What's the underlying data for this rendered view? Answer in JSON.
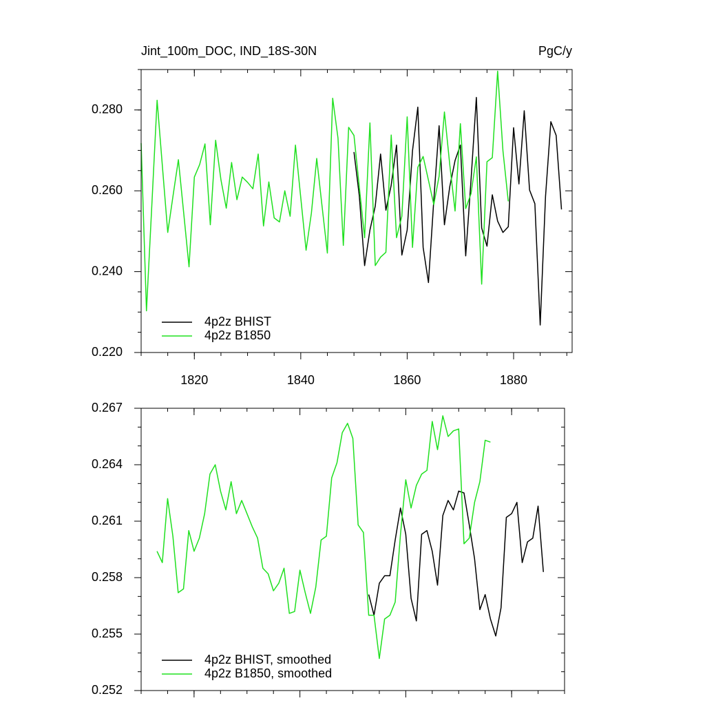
{
  "chart_data": [
    {
      "type": "line",
      "title": "Jint_100m_DOC, IND_18S-30N",
      "units": "PgC/y",
      "x": [
        1810,
        1811,
        1812,
        1813,
        1814,
        1815,
        1816,
        1817,
        1818,
        1819,
        1820,
        1821,
        1822,
        1823,
        1824,
        1825,
        1826,
        1827,
        1828,
        1829,
        1830,
        1831,
        1832,
        1833,
        1834,
        1835,
        1836,
        1837,
        1838,
        1839,
        1840,
        1841,
        1842,
        1843,
        1844,
        1845,
        1846,
        1847,
        1848,
        1849,
        1850,
        1851,
        1852,
        1853,
        1854,
        1855,
        1856,
        1857,
        1858,
        1859,
        1860,
        1861,
        1862,
        1863,
        1864,
        1865,
        1866,
        1867,
        1868,
        1869,
        1870,
        1871,
        1872,
        1873,
        1874,
        1875,
        1876,
        1877,
        1878,
        1879,
        1880,
        1881,
        1882,
        1883,
        1884,
        1885,
        1886,
        1887,
        1888,
        1889
      ],
      "series": [
        {
          "name": "4p2z BHIST",
          "color": "#000000",
          "values": [
            null,
            null,
            null,
            null,
            null,
            null,
            null,
            null,
            null,
            null,
            null,
            null,
            null,
            null,
            null,
            null,
            null,
            null,
            null,
            null,
            null,
            null,
            null,
            null,
            null,
            null,
            null,
            null,
            null,
            null,
            null,
            null,
            null,
            null,
            null,
            null,
            null,
            null,
            null,
            null,
            0.2696,
            0.2588,
            0.2415,
            0.2503,
            0.2562,
            0.2691,
            0.2552,
            0.2614,
            0.2713,
            0.2441,
            0.2503,
            0.2699,
            0.2807,
            0.246,
            0.2373,
            0.2576,
            0.2761,
            0.2516,
            0.261,
            0.2675,
            0.2713,
            0.2439,
            0.2627,
            0.2831,
            0.2508,
            0.2463,
            0.259,
            0.2525,
            0.2497,
            0.2511,
            0.2756,
            0.2617,
            0.2798,
            0.2602,
            0.2568,
            0.2268,
            0.2586,
            0.2771,
            0.2737,
            0.2554
          ]
        },
        {
          "name": "4p2z B1850",
          "color": "#1fe01f",
          "values": [
            0.2718,
            0.2303,
            0.2562,
            0.2824,
            0.266,
            0.2497,
            0.2588,
            0.2677,
            0.2545,
            0.2412,
            0.2634,
            0.2665,
            0.2716,
            0.2516,
            0.2725,
            0.2627,
            0.2557,
            0.267,
            0.2578,
            0.2634,
            0.2621,
            0.2605,
            0.2691,
            0.2513,
            0.2622,
            0.2533,
            0.2523,
            0.26,
            0.2537,
            0.2713,
            0.2583,
            0.2453,
            0.2545,
            0.268,
            0.2562,
            0.2446,
            0.2829,
            0.273,
            0.2465,
            0.2757,
            0.2737,
            0.261,
            0.2484,
            0.2768,
            0.2415,
            0.2436,
            0.2448,
            0.2738,
            0.2484,
            0.2537,
            0.2783,
            0.246,
            0.2658,
            0.2685,
            0.2626,
            0.2566,
            0.2636,
            0.2795,
            0.2665,
            0.255,
            0.2766,
            0.2556,
            0.2593,
            0.2684,
            0.2369,
            0.2672,
            0.2682,
            0.2896,
            0.2699,
            0.2574,
            null,
            null,
            null,
            null,
            null,
            null,
            null,
            null,
            null,
            null
          ]
        }
      ],
      "xlim": [
        1810,
        1891
      ],
      "xticks": [
        1820,
        1840,
        1860,
        1880
      ],
      "ylim": [
        0.22,
        0.29
      ],
      "yticks": [
        {
          "value": 0.22,
          "label": "0.220"
        },
        {
          "value": 0.24,
          "label": "0.240"
        },
        {
          "value": 0.26,
          "label": "0.260"
        },
        {
          "value": 0.28,
          "label": "0.280"
        }
      ],
      "legend": "lower left"
    },
    {
      "type": "line",
      "x": [
        1813,
        1814,
        1815,
        1816,
        1817,
        1818,
        1819,
        1820,
        1821,
        1822,
        1823,
        1824,
        1825,
        1826,
        1827,
        1828,
        1829,
        1830,
        1831,
        1832,
        1833,
        1834,
        1835,
        1836,
        1837,
        1838,
        1839,
        1840,
        1841,
        1842,
        1843,
        1844,
        1845,
        1846,
        1847,
        1848,
        1849,
        1850,
        1851,
        1852,
        1853,
        1854,
        1855,
        1856,
        1857,
        1858,
        1859,
        1860,
        1861,
        1862,
        1863,
        1864,
        1865,
        1866,
        1867,
        1868,
        1869,
        1870,
        1871,
        1872,
        1873,
        1874,
        1875,
        1876,
        1877,
        1878,
        1879,
        1880,
        1881,
        1882,
        1883,
        1884,
        1885,
        1886
      ],
      "series": [
        {
          "name": "4p2z BHIST, smoothed",
          "color": "#000000",
          "values": [
            null,
            null,
            null,
            null,
            null,
            null,
            null,
            null,
            null,
            null,
            null,
            null,
            null,
            null,
            null,
            null,
            null,
            null,
            null,
            null,
            null,
            null,
            null,
            null,
            null,
            null,
            null,
            null,
            null,
            null,
            null,
            null,
            null,
            null,
            null,
            null,
            null,
            null,
            null,
            null,
            0.2571,
            0.256,
            0.2577,
            0.2581,
            0.2581,
            0.26,
            0.2617,
            0.2603,
            0.2569,
            0.2557,
            0.2603,
            0.2605,
            0.2594,
            0.2576,
            0.2613,
            0.2621,
            0.2616,
            0.2626,
            0.2625,
            0.2608,
            0.259,
            0.2563,
            0.2571,
            0.2558,
            0.2549,
            0.2564,
            0.2612,
            0.2614,
            0.262,
            0.2588,
            0.2599,
            0.2601,
            0.2618,
            0.2583
          ]
        },
        {
          "name": "4p2z B1850, smoothed",
          "color": "#1fe01f",
          "values": [
            0.2594,
            0.2588,
            0.2622,
            0.2602,
            0.2572,
            0.2574,
            0.2605,
            0.2594,
            0.2601,
            0.2614,
            0.2635,
            0.264,
            0.2626,
            0.2616,
            0.2631,
            0.2614,
            0.2621,
            0.2614,
            0.2607,
            0.2601,
            0.2585,
            0.2582,
            0.2573,
            0.2577,
            0.2585,
            0.2561,
            0.2562,
            0.2584,
            0.2572,
            0.2561,
            0.2575,
            0.26,
            0.2602,
            0.2633,
            0.2641,
            0.2657,
            0.2662,
            0.2654,
            0.2608,
            0.2604,
            0.256,
            0.256,
            0.2537,
            0.2558,
            0.256,
            0.2567,
            0.2603,
            0.2632,
            0.2617,
            0.2629,
            0.2635,
            0.2637,
            0.2663,
            0.2648,
            0.2666,
            0.2655,
            0.2658,
            0.2659,
            0.2598,
            0.2601,
            0.262,
            0.2631,
            0.2653,
            0.2652,
            null,
            null,
            null,
            null,
            null,
            null,
            null,
            null,
            null,
            null
          ]
        }
      ],
      "xlim": [
        1810,
        1890
      ],
      "xticks": [
        1820,
        1840,
        1860,
        1880
      ],
      "ylim": [
        0.252,
        0.267
      ],
      "yticks": [
        0.252,
        0.255,
        0.258,
        0.261,
        0.264,
        0.267
      ],
      "legend": "lower left"
    }
  ]
}
